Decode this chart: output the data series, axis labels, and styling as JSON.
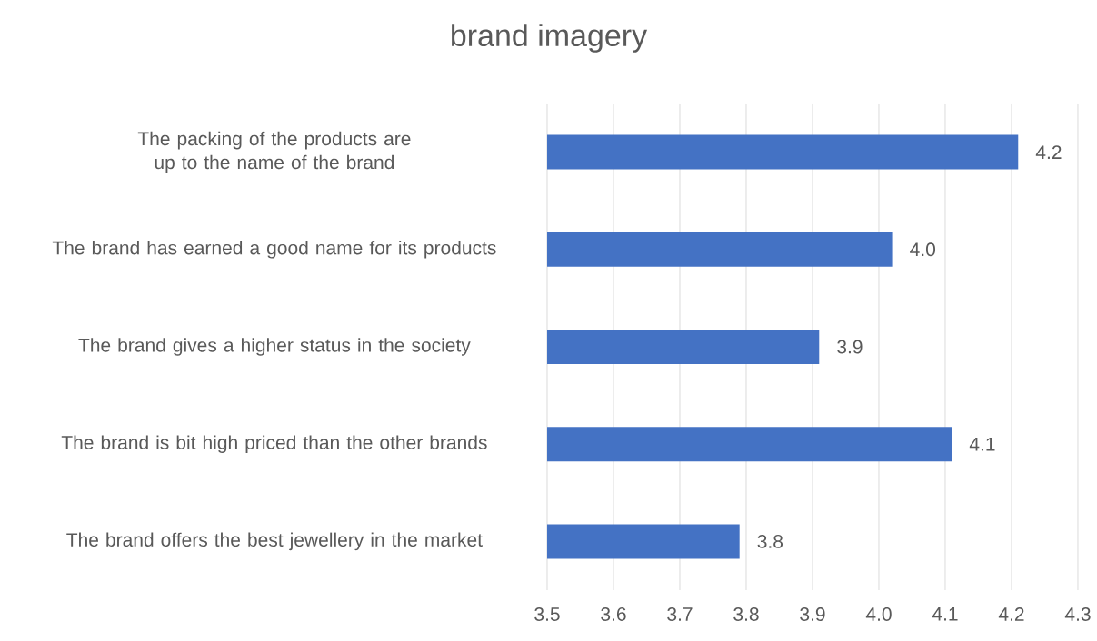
{
  "chart_data": {
    "type": "bar",
    "orientation": "horizontal",
    "title": "brand imagery",
    "categories": [
      "The packing of the products are up to the name of the brand",
      "The brand has earned a good name for its products",
      "The brand gives a higher status in the society",
      "The brand is bit high priced than the other brands",
      "The brand offers the best jewellery in the market"
    ],
    "values": [
      4.21,
      4.02,
      3.91,
      4.11,
      3.79
    ],
    "value_labels": [
      "4.2",
      "4.0",
      "3.9",
      "4.1",
      "3.8"
    ],
    "color": "#4472c4",
    "xlim": [
      3.5,
      4.3
    ],
    "xticks": [
      3.5,
      3.6,
      3.7,
      3.8,
      3.9,
      {
        "value": 4.0,
        "label": "4.0"
      },
      4.1,
      4.2,
      4.3
    ],
    "grid": "x"
  }
}
